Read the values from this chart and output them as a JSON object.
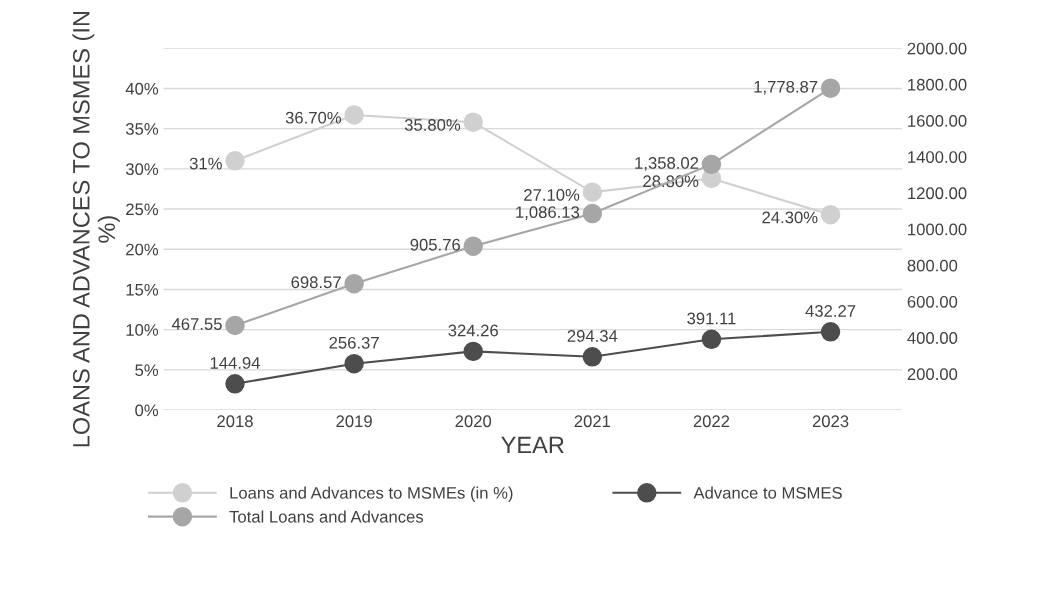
{
  "chart_data": {
    "type": "line",
    "xlabel": "YEAR",
    "ylabel": "LOANS AND ADVANCES TO MSMES (IN %)",
    "categories": [
      "2018",
      "2019",
      "2020",
      "2021",
      "2022",
      "2023"
    ],
    "series": [
      {
        "name": "Loans and Advances to MSMEs (in %)",
        "color": "#d0d0d0",
        "values": [
          31,
          36.7,
          35.8,
          27.1,
          28.8,
          24.3
        ],
        "value_labels": [
          "31%",
          "36.70%",
          "35.80%",
          "27.10%",
          "28.80%",
          "24.30%"
        ]
      },
      {
        "name": "Advance to MSMES",
        "color": "#4d4d4d",
        "axis": "y2",
        "values": [
          144.94,
          256.37,
          324.26,
          294.34,
          391.11,
          432.27
        ],
        "value_labels": [
          "144.94",
          "256.37",
          "324.26",
          "294.34",
          "391.11",
          "432.27"
        ]
      },
      {
        "name": "Total Loans and Advances",
        "color": "#a6a6a6",
        "axis": "y2",
        "values": [
          467.55,
          698.57,
          905.76,
          1086.13,
          1358.02,
          1778.87
        ],
        "value_labels": [
          "467.55",
          "698.57",
          "905.76",
          "1,086.13",
          "1,358.02",
          "1,778.87"
        ]
      }
    ],
    "ylim": [
      0,
      45
    ],
    "yticks": [
      {
        "value": 0,
        "label": "0%"
      },
      {
        "value": 5,
        "label": "5%"
      },
      {
        "value": 10,
        "label": "10%"
      },
      {
        "value": 15,
        "label": "15%"
      },
      {
        "value": 20,
        "label": "20%"
      },
      {
        "value": 25,
        "label": "25%"
      },
      {
        "value": 30,
        "label": "30%"
      },
      {
        "value": 35,
        "label": "35%"
      },
      {
        "value": 40,
        "label": "40%"
      },
      {
        "value": 45,
        "label": null
      }
    ],
    "y2lim": [
      0,
      2000
    ],
    "y2ticks": [
      {
        "value": 200,
        "label": "200.00"
      },
      {
        "value": 400,
        "label": "400.00"
      },
      {
        "value": 600,
        "label": "600.00"
      },
      {
        "value": 800,
        "label": "800.00"
      },
      {
        "value": 1000,
        "label": "1000.00"
      },
      {
        "value": 1200,
        "label": "1200.00"
      },
      {
        "value": 1400,
        "label": "1400.00"
      },
      {
        "value": 1600,
        "label": "1600.00"
      },
      {
        "value": 1800,
        "label": "1800.00"
      },
      {
        "value": 2000,
        "label": "2000.00"
      }
    ],
    "grid": "y",
    "legend": "bottom",
    "marker": "circle",
    "line_style": "solid"
  }
}
